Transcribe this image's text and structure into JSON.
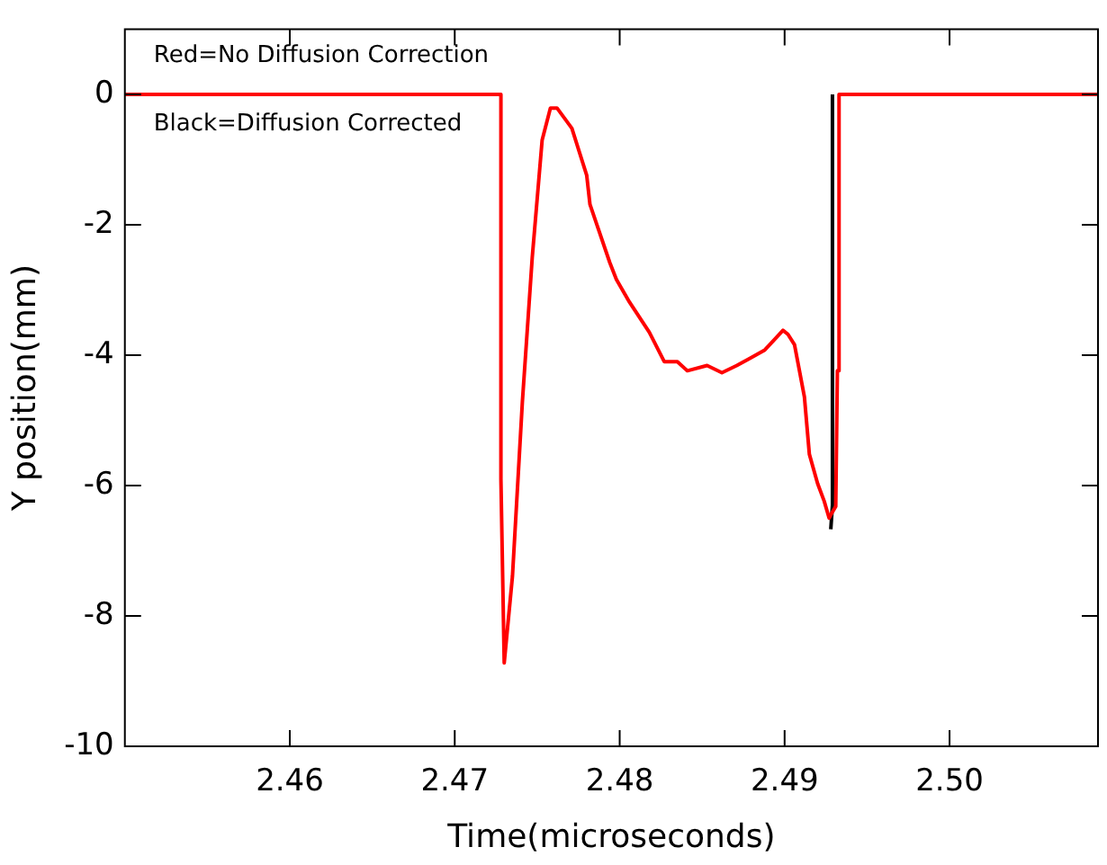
{
  "chart_data": {
    "type": "line",
    "xlabel": "Time(microseconds)",
    "ylabel": "Y position(mm)",
    "annotations": [
      "Red=No Diffusion Correction",
      "Black=Diffusion Corrected"
    ],
    "xlim": [
      2.45,
      2.509
    ],
    "xticks": [
      2.46,
      2.47,
      2.48,
      2.49,
      {
        "value": 2.5,
        "label": "2.50"
      }
    ],
    "ylim": [
      -10,
      1
    ],
    "yticks": [
      -10,
      -8,
      -6,
      -4,
      -2,
      0
    ],
    "grid": false,
    "legend": false,
    "marker": "none",
    "line_style": "solid",
    "series": [
      {
        "color": "#000000",
        "x": [
          2.4928,
          2.4929,
          2.4929
        ],
        "values": [
          -6.67,
          -6.3,
          0
        ]
      },
      {
        "color": "#ff0000",
        "x": [
          2.45,
          2.4728,
          2.4728,
          2.473,
          2.4735,
          2.4741,
          2.4747,
          2.4753,
          2.4758,
          2.4762,
          2.4771,
          2.478,
          2.4782,
          2.4794,
          2.4798,
          2.4806,
          2.4818,
          2.4827,
          2.4835,
          2.4841,
          2.4853,
          2.4862,
          2.4871,
          2.4879,
          2.4888,
          2.4895,
          2.4899,
          2.4902,
          2.4906,
          2.4912,
          2.4915,
          2.492,
          2.4924,
          2.4927,
          2.4928,
          2.4931,
          2.4932,
          2.4933,
          2.4933,
          2.509
        ],
        "values": [
          0,
          0,
          -5.9,
          -8.72,
          -7.39,
          -4.72,
          -2.5,
          -0.7,
          -0.21,
          -0.21,
          -0.52,
          -1.24,
          -1.69,
          -2.58,
          -2.84,
          -3.19,
          -3.65,
          -4.1,
          -4.1,
          -4.24,
          -4.16,
          -4.27,
          -4.16,
          -4.05,
          -3.92,
          -3.73,
          -3.62,
          -3.68,
          -3.84,
          -4.64,
          -5.52,
          -5.97,
          -6.24,
          -6.5,
          -6.45,
          -6.32,
          -4.24,
          -4.24,
          0,
          0
        ]
      }
    ]
  }
}
